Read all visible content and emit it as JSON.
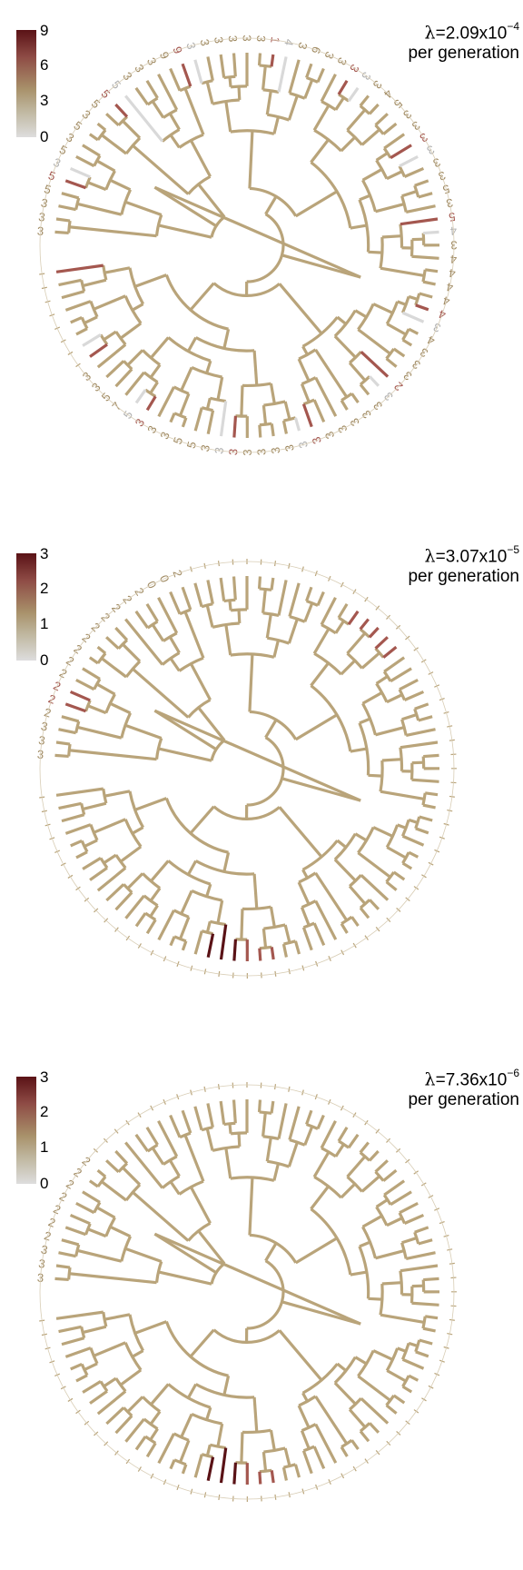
{
  "panels": [
    {
      "legend": {
        "ticks": [
          "9",
          "6",
          "3",
          "0"
        ]
      },
      "rate": {
        "symbol": "λ",
        "equals": "=",
        "mantissa": "2.09x10",
        "exponent": "−4",
        "unit": "per generation"
      },
      "tips_text": [
        "3",
        "3",
        "3",
        "5",
        "5",
        "3",
        "5",
        "3",
        "5",
        "3",
        "5",
        "5",
        "5",
        "3",
        "3",
        "3",
        "9",
        "9",
        "3",
        "3",
        "3",
        "3",
        "3",
        "3",
        "1",
        "4",
        "3",
        "6",
        "3",
        "3",
        "3",
        "3",
        "3",
        "4",
        "5",
        "3",
        "3",
        "3",
        "3",
        "3",
        "3",
        "5",
        "3",
        "5",
        "4",
        "3",
        "4",
        "4",
        "4",
        "4",
        "4",
        "3",
        "4",
        "3",
        "3",
        "3",
        "2",
        "3",
        "3",
        "3",
        "3",
        "3",
        "3",
        "3",
        "3",
        "3",
        "3",
        "3",
        "3",
        "3",
        "3",
        "3",
        "5",
        "5",
        "3",
        "3",
        "3",
        "5",
        "7",
        "5",
        "3",
        "3"
      ]
    },
    {
      "legend": {
        "ticks": [
          "3",
          "2",
          "1",
          "0"
        ]
      },
      "rate": {
        "symbol": "λ",
        "equals": "=",
        "mantissa": "3.07x10",
        "exponent": "−5",
        "unit": "per generation"
      },
      "tips_text": [
        "3",
        "3",
        "3",
        "2",
        "2",
        "2",
        "2",
        "2",
        "2",
        "2",
        "2",
        "2",
        "2",
        "2",
        "2",
        "0",
        "0",
        "2"
      ]
    },
    {
      "legend": {
        "ticks": [
          "3",
          "2",
          "1",
          "0"
        ]
      },
      "rate": {
        "symbol": "λ",
        "equals": "=",
        "mantissa": "7.36x10",
        "exponent": "−6",
        "unit": "per generation"
      },
      "tips_text": [
        "3",
        "3",
        "3",
        "2",
        "2",
        "2",
        "2",
        "2",
        "2",
        "2"
      ]
    }
  ],
  "colors": {
    "base": "#b9a47a",
    "light": "#d9d9d9",
    "mid_red": "#a4574f",
    "dark_red": "#5a1216"
  }
}
